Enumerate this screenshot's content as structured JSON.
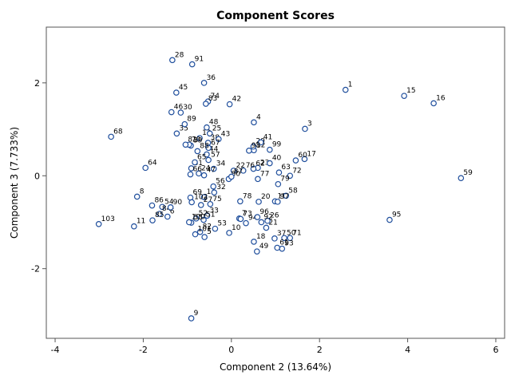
{
  "chart_data": {
    "type": "scatter",
    "title": "Component Scores",
    "xlabel": "Component 2 (13.64%)",
    "ylabel": "Component 3 (7.733%)",
    "xlim": [
      -4.2,
      6.2
    ],
    "ylim": [
      -3.5,
      3.2
    ],
    "xticks": [
      -4,
      -2,
      0,
      2,
      4,
      6
    ],
    "yticks": [
      -2,
      0,
      2
    ],
    "grid": false,
    "legend": "none",
    "marker_color": "#1f4e9c",
    "points": [
      {
        "label": "1",
        "x": 2.59,
        "y": 1.85
      },
      {
        "label": "3",
        "x": 1.67,
        "y": 1.01
      },
      {
        "label": "4",
        "x": 0.51,
        "y": 1.15
      },
      {
        "label": "5",
        "x": -0.61,
        "y": -1.32
      },
      {
        "label": "6",
        "x": -1.45,
        "y": -0.88
      },
      {
        "label": "7",
        "x": 0.18,
        "y": -0.92
      },
      {
        "label": "8",
        "x": -2.14,
        "y": -0.45
      },
      {
        "label": "9",
        "x": -0.91,
        "y": -3.07
      },
      {
        "label": "10",
        "x": -0.05,
        "y": -1.23
      },
      {
        "label": "11",
        "x": -2.21,
        "y": -1.09
      },
      {
        "label": "12",
        "x": 0.51,
        "y": 0.55
      },
      {
        "label": "13",
        "x": -0.72,
        "y": 0.81
      },
      {
        "label": "14",
        "x": -0.62,
        "y": -0.46
      },
      {
        "label": "15",
        "x": 3.92,
        "y": 1.72
      },
      {
        "label": "16",
        "x": 4.59,
        "y": 1.56
      },
      {
        "label": "17",
        "x": 1.66,
        "y": 0.36
      },
      {
        "label": "18",
        "x": 0.51,
        "y": -1.42
      },
      {
        "label": "19",
        "x": 0.99,
        "y": -0.55
      },
      {
        "label": "20",
        "x": 0.62,
        "y": -0.56
      },
      {
        "label": "21",
        "x": 0.79,
        "y": -1.12
      },
      {
        "label": "22",
        "x": 0.05,
        "y": 0.11
      },
      {
        "label": "23",
        "x": 0.6,
        "y": 0.17
      },
      {
        "label": "24",
        "x": -0.74,
        "y": 0.05
      },
      {
        "label": "25",
        "x": -0.49,
        "y": 0.91
      },
      {
        "label": "26",
        "x": 0.82,
        "y": -0.97
      },
      {
        "label": "27",
        "x": -0.69,
        "y": -0.63
      },
      {
        "label": "28",
        "x": -1.34,
        "y": 2.49
      },
      {
        "label": "29",
        "x": 0.5,
        "y": 0.63
      },
      {
        "label": "30",
        "x": -1.15,
        "y": 1.36
      },
      {
        "label": "31",
        "x": -0.91,
        "y": 0.16
      },
      {
        "label": "32",
        "x": -0.39,
        "y": -0.36
      },
      {
        "label": "33",
        "x": -0.55,
        "y": -0.86
      },
      {
        "label": "34",
        "x": -0.4,
        "y": 0.15
      },
      {
        "label": "35",
        "x": -1.24,
        "y": 0.91
      },
      {
        "label": "36",
        "x": -0.62,
        "y": 2.0
      },
      {
        "label": "37",
        "x": 0.98,
        "y": -1.35
      },
      {
        "label": "38",
        "x": -0.53,
        "y": 0.71
      },
      {
        "label": "39",
        "x": -0.92,
        "y": 0.65
      },
      {
        "label": "40",
        "x": 0.87,
        "y": 0.27
      },
      {
        "label": "41",
        "x": 0.67,
        "y": 0.72
      },
      {
        "label": "42",
        "x": -0.04,
        "y": 1.54
      },
      {
        "label": "43",
        "x": -0.29,
        "y": 0.79
      },
      {
        "label": "44",
        "x": -0.56,
        "y": 0.46
      },
      {
        "label": "45",
        "x": -1.25,
        "y": 1.79
      },
      {
        "label": "46",
        "x": -1.36,
        "y": 1.37
      },
      {
        "label": "47",
        "x": -0.62,
        "y": 0.01
      },
      {
        "label": "48",
        "x": -0.56,
        "y": 1.04
      },
      {
        "label": "49",
        "x": 0.58,
        "y": -1.63
      },
      {
        "label": "50",
        "x": 1.2,
        "y": -1.34
      },
      {
        "label": "51",
        "x": -0.63,
        "y": -0.95
      },
      {
        "label": "52",
        "x": -0.8,
        "y": -0.92
      },
      {
        "label": "53",
        "x": -0.37,
        "y": -1.14
      },
      {
        "label": "54",
        "x": -1.57,
        "y": -0.67
      },
      {
        "label": "55",
        "x": -0.91,
        "y": -1.01
      },
      {
        "label": "56",
        "x": -0.41,
        "y": -0.23
      },
      {
        "label": "57",
        "x": -0.52,
        "y": 0.34
      },
      {
        "label": "58",
        "x": 1.24,
        "y": -0.43
      },
      {
        "label": "59",
        "x": 5.21,
        "y": -0.05
      },
      {
        "label": "60",
        "x": 1.46,
        "y": 0.33
      },
      {
        "label": "61",
        "x": 1.04,
        "y": -1.55
      },
      {
        "label": "62",
        "x": 0.5,
        "y": 0.15
      },
      {
        "label": "63",
        "x": 1.08,
        "y": 0.07
      },
      {
        "label": "64",
        "x": -1.95,
        "y": 0.17
      },
      {
        "label": "65",
        "x": -0.83,
        "y": 0.29
      },
      {
        "label": "66",
        "x": -0.93,
        "y": 0.03
      },
      {
        "label": "67",
        "x": -0.52,
        "y": 0.6
      },
      {
        "label": "68",
        "x": -2.73,
        "y": 0.84
      },
      {
        "label": "69",
        "x": -0.93,
        "y": -0.47
      },
      {
        "label": "70",
        "x": -0.96,
        "y": 0.67
      },
      {
        "label": "71",
        "x": 1.33,
        "y": -1.34
      },
      {
        "label": "72",
        "x": 1.33,
        "y": 0.0
      },
      {
        "label": "73",
        "x": 0.21,
        "y": -0.93
      },
      {
        "label": "74",
        "x": -0.53,
        "y": 1.6
      },
      {
        "label": "75",
        "x": -0.48,
        "y": -0.61
      },
      {
        "label": "76",
        "x": 0.27,
        "y": 0.11
      },
      {
        "label": "77",
        "x": 0.6,
        "y": -0.07
      },
      {
        "label": "78",
        "x": 0.2,
        "y": -0.55
      },
      {
        "label": "79",
        "x": 1.06,
        "y": -0.18
      },
      {
        "label": "80",
        "x": -0.06,
        "y": -0.07
      },
      {
        "label": "81",
        "x": -1.04,
        "y": 0.67
      },
      {
        "label": "82",
        "x": -0.71,
        "y": -1.21
      },
      {
        "label": "83",
        "x": -0.58,
        "y": 1.55
      },
      {
        "label": "84",
        "x": -1.63,
        "y": -0.82
      },
      {
        "label": "85",
        "x": -1.79,
        "y": -0.96
      },
      {
        "label": "86",
        "x": -1.8,
        "y": -0.64
      },
      {
        "label": "87",
        "x": 0.0,
        "y": -0.02
      },
      {
        "label": "88",
        "x": -0.77,
        "y": 0.53
      },
      {
        "label": "89",
        "x": -1.06,
        "y": 1.11
      },
      {
        "label": "90",
        "x": -1.38,
        "y": -0.68
      },
      {
        "label": "91",
        "x": -0.89,
        "y": 2.4
      },
      {
        "label": "92",
        "x": 0.68,
        "y": -1.0
      },
      {
        "label": "93",
        "x": 1.15,
        "y": -1.57
      },
      {
        "label": "94",
        "x": 0.33,
        "y": -1.02
      },
      {
        "label": "95",
        "x": 3.59,
        "y": -0.95
      },
      {
        "label": "96",
        "x": 0.59,
        "y": -0.89
      },
      {
        "label": "97",
        "x": 1.05,
        "y": -0.56
      },
      {
        "label": "98",
        "x": 0.4,
        "y": 0.54
      },
      {
        "label": "99",
        "x": 0.87,
        "y": 0.56
      },
      {
        "label": "100",
        "x": -0.96,
        "y": -1.0
      },
      {
        "label": "101",
        "x": -0.82,
        "y": -1.26
      },
      {
        "label": "102",
        "x": -0.9,
        "y": -0.57
      },
      {
        "label": "103",
        "x": -3.01,
        "y": -1.04
      }
    ]
  }
}
